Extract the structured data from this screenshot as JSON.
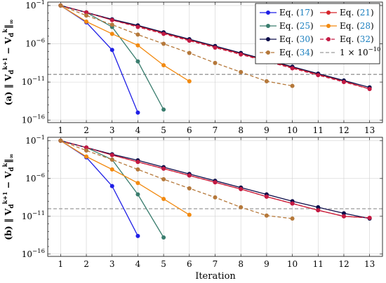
{
  "figure": {
    "xlabel": "Iteration"
  },
  "chart_data": [
    {
      "type": "line",
      "panel_label": "(a)",
      "ylabel": "‖ V_d^{k+1} − V_d^k ‖_∞",
      "xlim": [
        0.5,
        13.5
      ],
      "ylim_log10": [
        -15,
        0
      ],
      "y_scale": "log",
      "x_ticks": [
        "1",
        "2",
        "3",
        "4",
        "5",
        "6",
        "7",
        "8",
        "9",
        "10",
        "11",
        "12",
        "13"
      ],
      "y_ticks": [
        {
          "exp": -1,
          "label_base": "10",
          "label_exp": "−1"
        },
        {
          "exp": -6,
          "label_base": "10",
          "label_exp": "−6"
        },
        {
          "exp": -11,
          "label_base": "10",
          "label_exp": "−11"
        },
        {
          "exp": -16,
          "label_base": "10",
          "label_exp": "−16"
        }
      ],
      "grid": true,
      "legend_position": "top-right",
      "threshold": {
        "value_log10": -10,
        "label": "1 × 10",
        "label_exp": "−10",
        "color": "#808080"
      },
      "series": [
        {
          "name": "Eq. (17)",
          "prefix": "Eq. (",
          "ref": "17",
          "suffix": ")",
          "color": "#1f1fe6",
          "dashed": false,
          "x": [
            1,
            2,
            3,
            4
          ],
          "y_log10": [
            -1,
            -3.2,
            -6.8,
            -15
          ]
        },
        {
          "name": "Eq. (21)",
          "prefix": "Eq. (",
          "ref": "21",
          "suffix": ")",
          "color": "#d6242a",
          "dashed": false,
          "x": [
            1,
            2,
            3,
            4,
            5,
            6,
            7,
            8,
            9,
            10,
            11,
            12,
            13
          ],
          "y_log10": [
            -1,
            -1.9,
            -2.9,
            -3.7,
            -4.6,
            -5.5,
            -6.4,
            -7.3,
            -8.2,
            -9.1,
            -10.0,
            -10.9,
            -11.9
          ]
        },
        {
          "name": "Eq. (25)",
          "prefix": "Eq. (",
          "ref": "25",
          "suffix": ")",
          "color": "#3a7d6e",
          "dashed": false,
          "x": [
            1,
            2,
            3,
            4,
            5
          ],
          "y_log10": [
            -1,
            -1.9,
            -3.8,
            -8.3,
            -14.6
          ]
        },
        {
          "name": "Eq. (28)",
          "prefix": "Eq. (",
          "ref": "28",
          "suffix": ")",
          "color": "#f28a10",
          "dashed": false,
          "x": [
            1,
            2,
            3,
            4,
            5,
            6
          ],
          "y_log10": [
            -1,
            -3.1,
            -4.7,
            -6.2,
            -8.8,
            -10.9
          ]
        },
        {
          "name": "Eq. (30)",
          "prefix": "Eq. (",
          "ref": "30",
          "suffix": ")",
          "color": "#0d0d4a",
          "dashed": false,
          "x": [
            1,
            2,
            3,
            4,
            5,
            6,
            7,
            8,
            9,
            10,
            11,
            12,
            13
          ],
          "y_log10": [
            -1,
            -1.9,
            -2.8,
            -3.6,
            -4.5,
            -5.4,
            -6.3,
            -7.2,
            -8.1,
            -9.0,
            -9.9,
            -10.8,
            -11.7
          ]
        },
        {
          "name": "Eq. (32)",
          "prefix": "Eq. (",
          "ref": "32",
          "suffix": ")",
          "color": "#c41a44",
          "dashed": true,
          "x": [
            1,
            2,
            3,
            4,
            5,
            6,
            7,
            8,
            9,
            10,
            11,
            12,
            13
          ],
          "y_log10": [
            -1,
            -1.9,
            -2.9,
            -3.8,
            -4.7,
            -5.6,
            -6.5,
            -7.4,
            -8.3,
            -9.2,
            -10.1,
            -11.0,
            -11.9
          ]
        },
        {
          "name": "Eq. (34)",
          "prefix": "Eq. (",
          "ref": "34",
          "suffix": ")",
          "color": "#b5783a",
          "dashed": true,
          "x": [
            1,
            2,
            3,
            4,
            5,
            6,
            7,
            8,
            9,
            10
          ],
          "y_log10": [
            -1,
            -2.3,
            -3.5,
            -4.8,
            -6.0,
            -7.2,
            -8.5,
            -9.7,
            -10.9,
            -11.5
          ]
        }
      ]
    },
    {
      "type": "line",
      "panel_label": "(b)",
      "ylabel": "‖ V_d^{k+1} − V_d^k ‖_∞",
      "xlim": [
        0.5,
        13.5
      ],
      "ylim_log10": [
        -15,
        0
      ],
      "y_scale": "log",
      "x_ticks": [
        "1",
        "2",
        "3",
        "4",
        "5",
        "6",
        "7",
        "8",
        "9",
        "10",
        "11",
        "12",
        "13"
      ],
      "y_ticks": [
        {
          "exp": -1,
          "label_base": "10",
          "label_exp": "−1"
        },
        {
          "exp": -6,
          "label_base": "10",
          "label_exp": "−6"
        },
        {
          "exp": -11,
          "label_base": "10",
          "label_exp": "−11"
        },
        {
          "exp": -16,
          "label_base": "10",
          "label_exp": "−16"
        }
      ],
      "grid": true,
      "threshold": {
        "value_log10": -10,
        "color": "#808080"
      },
      "series": [
        {
          "name": "Eq. (17)",
          "color": "#1f1fe6",
          "dashed": false,
          "x": [
            1,
            2,
            3,
            4
          ],
          "y_log10": [
            -1,
            -3.2,
            -7.0,
            -13.6
          ]
        },
        {
          "name": "Eq. (21)",
          "color": "#d6242a",
          "dashed": false,
          "x": [
            1,
            2,
            3,
            4,
            5,
            6,
            7,
            8,
            9,
            10,
            11,
            12,
            13
          ],
          "y_log10": [
            -1,
            -1.9,
            -2.9,
            -3.8,
            -4.7,
            -5.6,
            -6.5,
            -7.4,
            -8.4,
            -9.3,
            -10.2,
            -11.0,
            -11.2
          ]
        },
        {
          "name": "Eq. (25)",
          "color": "#3a7d6e",
          "dashed": false,
          "x": [
            1,
            2,
            3,
            4,
            5
          ],
          "y_log10": [
            -1,
            -1.9,
            -3.5,
            -8.1,
            -13.8
          ]
        },
        {
          "name": "Eq. (28)",
          "color": "#f28a10",
          "dashed": false,
          "x": [
            1,
            2,
            3,
            4,
            5,
            6
          ],
          "y_log10": [
            -1,
            -3.1,
            -4.8,
            -6.6,
            -8.7,
            -10.8
          ]
        },
        {
          "name": "Eq. (30)",
          "color": "#0d0d4a",
          "dashed": false,
          "x": [
            1,
            2,
            3,
            4,
            5,
            6,
            7,
            8,
            9,
            10,
            11,
            12,
            13
          ],
          "y_log10": [
            -1,
            -1.9,
            -2.8,
            -3.6,
            -4.5,
            -5.4,
            -6.3,
            -7.2,
            -8.1,
            -9.0,
            -9.8,
            -10.6,
            -11.3
          ]
        },
        {
          "name": "Eq. (32)",
          "color": "#c41a44",
          "dashed": true,
          "x": [
            1,
            2,
            3,
            4,
            5,
            6,
            7,
            8,
            9,
            10,
            11,
            12,
            13
          ],
          "y_log10": [
            -1,
            -1.9,
            -2.9,
            -3.8,
            -4.7,
            -5.6,
            -6.5,
            -7.4,
            -8.4,
            -9.3,
            -10.2,
            -11.0,
            -11.2
          ]
        },
        {
          "name": "Eq. (34)",
          "color": "#b5783a",
          "dashed": true,
          "x": [
            1,
            2,
            3,
            4,
            5,
            6,
            7,
            8,
            9,
            10
          ],
          "y_log10": [
            -1,
            -2.3,
            -3.5,
            -4.8,
            -6.1,
            -7.3,
            -8.5,
            -9.8,
            -10.9,
            -11.3
          ]
        }
      ]
    }
  ]
}
